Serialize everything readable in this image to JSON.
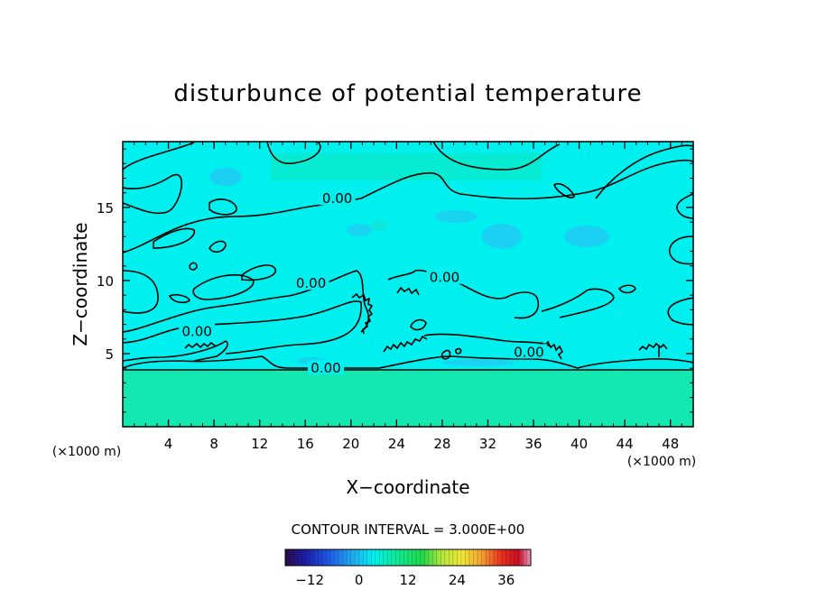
{
  "chart_data": {
    "type": "contour",
    "title": "disturbunce of potential temperature",
    "xlabel": "X−coordinate",
    "ylabel": "Z−coordinate",
    "x_unit_left": "(×1000 m)",
    "x_unit_right": "(×1000 m)",
    "xlim": [
      0,
      50
    ],
    "ylim": [
      0,
      19.5
    ],
    "x_ticks": [
      4,
      8,
      12,
      16,
      20,
      24,
      28,
      32,
      36,
      40,
      44,
      48
    ],
    "y_ticks": [
      5,
      10,
      15
    ],
    "contour_interval_text": "CONTOUR INTERVAL = 3.000E+00",
    "contour_label": "0.00",
    "contour_label_positions": [
      {
        "x": 18.8,
        "y": 15.6
      },
      {
        "x": 16.5,
        "y": 9.8
      },
      {
        "x": 6.5,
        "y": 6.5
      },
      {
        "x": 17.8,
        "y": 4.0
      },
      {
        "x": 28.2,
        "y": 10.2
      },
      {
        "x": 35.6,
        "y": 5.1
      }
    ],
    "colorbar": {
      "min": -18,
      "max": 42,
      "ticks": [
        -12,
        0,
        12,
        24,
        36
      ]
    },
    "colors": {
      "field_main": "#00f0ef",
      "field_low": "#13e8b0",
      "field_patch_blue": "#22c8f2",
      "contour": "#000000"
    }
  }
}
